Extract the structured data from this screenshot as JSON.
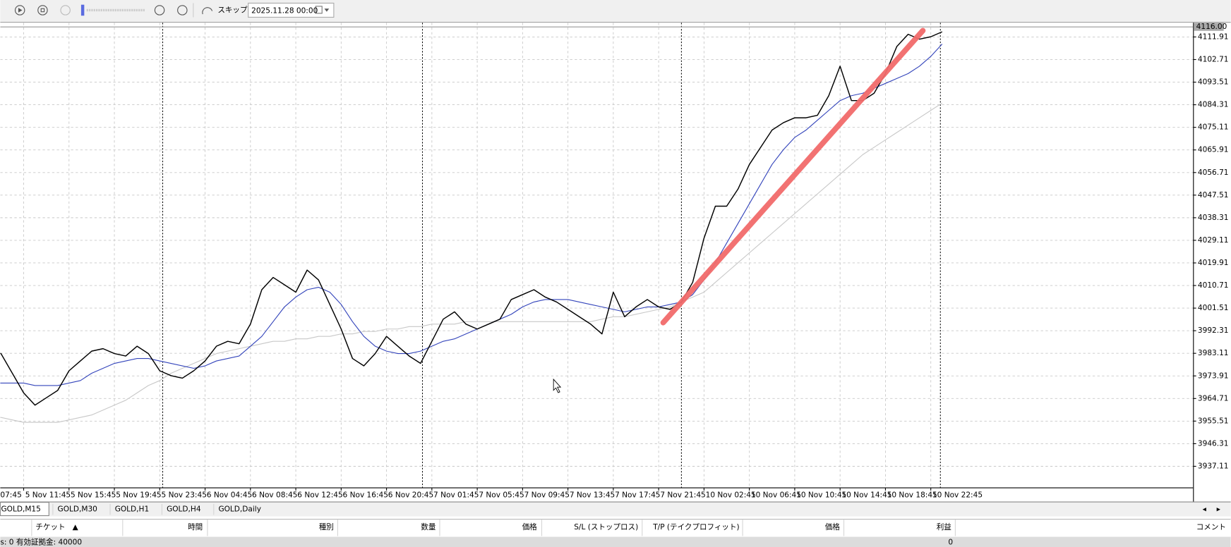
{
  "toolbar": {
    "skip_label": "スキップ",
    "date": "2025.11.28 00:00"
  },
  "chart_data": {
    "type": "line",
    "categories": [
      "07:45",
      null,
      null,
      null,
      "5 Nov 11:45",
      null,
      null,
      null,
      "5 Nov 15:45",
      null,
      null,
      null,
      "5 Nov 19:45",
      null,
      null,
      null,
      "5 Nov 23:45",
      null,
      null,
      null,
      "6 Nov 04:45",
      null,
      null,
      null,
      "6 Nov 08:45",
      null,
      null,
      null,
      "6 Nov 12:45",
      null,
      null,
      null,
      "6 Nov 16:45",
      null,
      null,
      null,
      "6 Nov 20:45",
      null,
      null,
      null,
      "7 Nov 01:45",
      null,
      null,
      null,
      "7 Nov 05:45",
      null,
      null,
      null,
      "7 Nov 09:45",
      null,
      null,
      null,
      "7 Nov 13:45",
      null,
      null,
      null,
      "7 Nov 17:45",
      null,
      null,
      null,
      "7 Nov 21:45",
      null,
      null,
      null,
      "10 Nov 02:45",
      null,
      null,
      null,
      "10 Nov 06:45",
      null,
      null,
      null,
      "10 Nov 10:45",
      null,
      null,
      null,
      "10 Nov 14:45",
      null,
      null,
      null,
      "10 Nov 18:45",
      null,
      null,
      null,
      "10 Nov 22:45",
      null
    ],
    "series": [
      {
        "color": "#000000",
        "values": [
          3984,
          3984,
          3983,
          3975,
          3967,
          3962,
          3965,
          3968,
          3976,
          3980,
          3984,
          3985,
          3983,
          3982,
          3986,
          3983,
          3976,
          3974,
          3973,
          3976,
          3980,
          3986,
          3988,
          3987,
          3995,
          4009,
          4014,
          4011,
          4008,
          4017,
          4013,
          4003,
          3993,
          3981,
          3978,
          3983,
          3990,
          3986,
          3982,
          3979,
          3988,
          3997,
          4000,
          3995,
          3993,
          3995,
          3997,
          4005,
          4007,
          4009,
          4006,
          4004,
          4001,
          3998,
          3995,
          3991,
          4008,
          3998,
          4002,
          4005,
          4002,
          4001,
          4004,
          4012,
          4030,
          4043,
          4043,
          4050,
          4060,
          4067,
          4074,
          4077,
          4079,
          4079,
          4080,
          4088,
          4100,
          4086,
          4086,
          4089,
          4097,
          4108,
          4113,
          4111,
          4112,
          4114
        ]
      },
      {
        "color": "#3344bb",
        "values": [
          3971,
          3971,
          3971,
          3971,
          3971,
          3970,
          3970,
          3970,
          3971,
          3972,
          3975,
          3977,
          3979,
          3980,
          3981,
          3981,
          3980,
          3979,
          3978,
          3977,
          3978,
          3980,
          3981,
          3982,
          3986,
          3990,
          3996,
          4002,
          4006,
          4009,
          4010,
          4008,
          4003,
          3996,
          3990,
          3986,
          3984,
          3983,
          3983,
          3984,
          3986,
          3988,
          3989,
          3991,
          3993,
          3995,
          3997,
          3999,
          4002,
          4004,
          4005,
          4005,
          4005,
          4004,
          4003,
          4002,
          4001,
          4000,
          4001,
          4002,
          4002,
          4003,
          4004,
          4007,
          4013,
          4020,
          4028,
          4036,
          4044,
          4052,
          4060,
          4066,
          4071,
          4074,
          4078,
          4082,
          4086,
          4088,
          4089,
          4091,
          4093,
          4095,
          4097,
          4100,
          4104,
          4109
        ]
      },
      {
        "color": "#c8c8c8",
        "values": [
          3958,
          3957,
          3957,
          3956,
          3955,
          3955,
          3955,
          3955,
          3956,
          3957,
          3958,
          3960,
          3962,
          3964,
          3967,
          3970,
          3972,
          3975,
          3977,
          3979,
          3981,
          3983,
          3984,
          3985,
          3986,
          3987,
          3988,
          3988,
          3989,
          3989,
          3990,
          3990,
          3991,
          3991,
          3992,
          3992,
          3993,
          3993,
          3994,
          3994,
          3995,
          3995,
          3995,
          3996,
          3996,
          3996,
          3996,
          3996,
          3996,
          3996,
          3996,
          3996,
          3996,
          3996,
          3996,
          3997,
          3998,
          3998,
          3999,
          4000,
          4001,
          4002,
          4004,
          4006,
          4008,
          4012,
          4016,
          4020,
          4024,
          4028,
          4032,
          4036,
          4040,
          4044,
          4048,
          4052,
          4056,
          4060,
          4064,
          4067,
          4070,
          4073,
          4076,
          4079,
          4082,
          4085
        ]
      }
    ],
    "trendline": {
      "color": "#f26b6b",
      "x": [
        60.4,
        83.3
      ],
      "values": [
        3995.6,
        4114.5
      ]
    },
    "ylim": [
      3928.5,
      4117.7
    ],
    "yticks": [
      4111.91,
      4102.71,
      4093.51,
      4084.31,
      4075.11,
      4065.91,
      4056.71,
      4047.51,
      4038.31,
      4029.11,
      4019.91,
      4010.71,
      4001.51,
      3992.31,
      3983.11,
      3973.91,
      3964.71,
      3955.51,
      3946.31,
      3937.11
    ],
    "current_price": {
      "value": 4116,
      "label": "4116.00"
    },
    "grid": true
  },
  "tabs": [
    "GOLD,M15",
    "GOLD,M30",
    "GOLD,H1",
    "GOLD,H4",
    "GOLD,Daily"
  ],
  "terminal": {
    "columns": [
      "チケット",
      "時間",
      "種別",
      "数量",
      "価格",
      "S/L (ストップロス)",
      "T/P (テイクプロフィット)",
      "価格",
      "利益",
      "コメント"
    ],
    "sort_marker": "▲",
    "status": "s: 0  有効証拠金: 40000",
    "profit": "0"
  }
}
